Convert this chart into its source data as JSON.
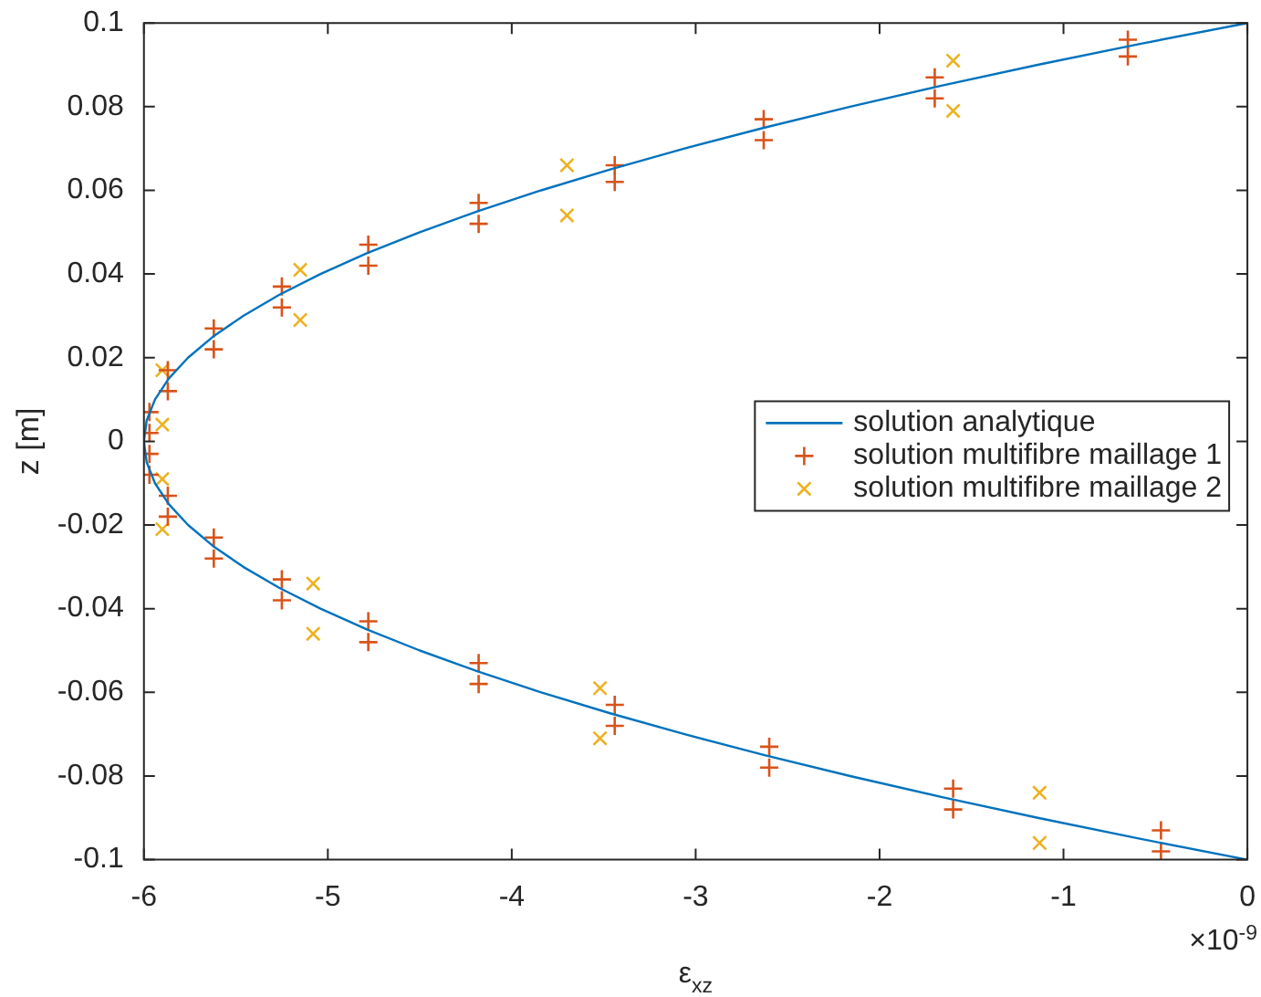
{
  "chart_data": {
    "type": "scatter",
    "xlabel": "ε$_{xz}$",
    "ylabel": "z [m]",
    "annotations": [
      "×10$^{-9}$"
    ],
    "xlim": [
      -6,
      0
    ],
    "xticks": [
      -6,
      -5,
      -4,
      -3,
      -2,
      -1,
      0
    ],
    "ylim": [
      -0.1,
      0.1
    ],
    "yticks": [
      -0.1,
      -0.08,
      -0.06,
      -0.04,
      -0.02,
      0,
      0.02,
      0.04,
      0.06,
      0.08,
      0.1
    ],
    "grid": false,
    "legend": "right",
    "series": [
      {
        "name": "solution analytique",
        "type": "line",
        "color": "#0072bd",
        "marker": "none",
        "line_style": "solid",
        "x": [
          0,
          -0.585,
          -1.14,
          -1.665,
          -2.16,
          -2.625,
          -3.06,
          -3.465,
          -3.84,
          -4.185,
          -4.5,
          -4.785,
          -5.04,
          -5.265,
          -5.46,
          -5.625,
          -5.76,
          -5.865,
          -5.94,
          -5.985,
          -6,
          -5.985,
          -5.94,
          -5.865,
          -5.76,
          -5.625,
          -5.46,
          -5.265,
          -5.04,
          -4.785,
          -4.5,
          -4.185,
          -3.84,
          -3.465,
          -3.06,
          -2.625,
          -2.16,
          -1.665,
          -1.14,
          -0.585,
          0
        ],
        "values": [
          0.1,
          0.095,
          0.09,
          0.085,
          0.08,
          0.075,
          0.07,
          0.065,
          0.06,
          0.055,
          0.05,
          0.045,
          0.04,
          0.035,
          0.03,
          0.025,
          0.02,
          0.015,
          0.01,
          0.005,
          0,
          -0.005,
          -0.01,
          -0.015,
          -0.02,
          -0.025,
          -0.03,
          -0.035,
          -0.04,
          -0.045,
          -0.05,
          -0.055,
          -0.06,
          -0.065,
          -0.07,
          -0.075,
          -0.08,
          -0.085,
          -0.09,
          -0.095,
          -0.1
        ]
      },
      {
        "name": "solution multifibre maillage 1",
        "type": "scatter",
        "color": "#d95319",
        "marker": "cross",
        "x": [
          -0.65,
          -0.65,
          -1.7,
          -1.7,
          -2.63,
          -2.63,
          -3.44,
          -3.44,
          -4.18,
          -4.18,
          -4.78,
          -4.78,
          -5.25,
          -5.25,
          -5.62,
          -5.62,
          -5.87,
          -5.87,
          -5.97,
          -5.97,
          -5.97,
          -5.97,
          -5.87,
          -5.87,
          -5.62,
          -5.62,
          -5.25,
          -5.25,
          -4.78,
          -4.78,
          -4.18,
          -4.18,
          -3.44,
          -3.44,
          -2.6,
          -2.6,
          -1.6,
          -1.6,
          -0.47,
          -0.47
        ],
        "values": [
          0.096,
          0.092,
          0.087,
          0.082,
          0.077,
          0.072,
          0.066,
          0.062,
          0.057,
          0.052,
          0.047,
          0.042,
          0.037,
          0.032,
          0.027,
          0.022,
          0.017,
          0.012,
          0.007,
          0.002,
          -0.003,
          -0.008,
          -0.013,
          -0.018,
          -0.023,
          -0.028,
          -0.033,
          -0.038,
          -0.043,
          -0.048,
          -0.053,
          -0.058,
          -0.063,
          -0.068,
          -0.073,
          -0.078,
          -0.083,
          -0.088,
          -0.093,
          -0.098
        ]
      },
      {
        "name": "solution multifibre maillage 2",
        "type": "scatter",
        "color": "#edb120",
        "marker": "x",
        "x": [
          -1.6,
          -1.6,
          -3.7,
          -3.7,
          -5.15,
          -5.15,
          -5.9,
          -5.9,
          -5.9,
          -5.9,
          -5.08,
          -5.08,
          -3.52,
          -3.52,
          -1.13,
          -1.13
        ],
        "values": [
          0.091,
          0.079,
          0.066,
          0.054,
          0.041,
          0.029,
          0.017,
          0.004,
          -0.009,
          -0.021,
          -0.034,
          -0.046,
          -0.059,
          -0.071,
          -0.084,
          -0.096
        ]
      }
    ]
  }
}
